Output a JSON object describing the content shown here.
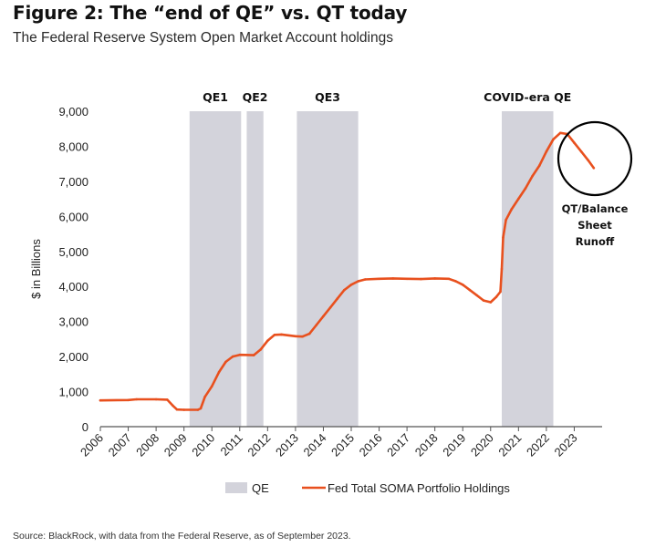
{
  "header": {
    "title": "Figure 2: The “end of QE” vs. QT today",
    "subtitle": "The Federal Reserve System Open Market Account holdings"
  },
  "source": "Source: BlackRock, with data from the Federal Reserve, as of September 2023.",
  "colors": {
    "line": "#e8501e",
    "band": "#d3d3db",
    "axis": "#555555",
    "text": "#222222"
  },
  "chart_data": {
    "type": "line",
    "ylabel": "$ in Billions",
    "xlabel": "",
    "ylim": [
      0,
      9000
    ],
    "xlim": [
      2006,
      2024
    ],
    "yticks": [
      0,
      1000,
      2000,
      3000,
      4000,
      5000,
      6000,
      7000,
      8000,
      9000
    ],
    "ytick_labels": [
      "0",
      "1,000",
      "2,000",
      "3,000",
      "4,000",
      "5,000",
      "6,000",
      "7,000",
      "8,000",
      "9,000"
    ],
    "xticks": [
      "2006",
      "2007",
      "2008",
      "2009",
      "2010",
      "2011",
      "2012",
      "2013",
      "2014",
      "2015",
      "2016",
      "2017",
      "2018",
      "2019",
      "2020",
      "2021",
      "2022",
      "2023"
    ],
    "bands": [
      {
        "label": "QE1",
        "start": 2009.2,
        "end": 2011.05
      },
      {
        "label": "QE2",
        "start": 2011.25,
        "end": 2011.85
      },
      {
        "label": "QE3",
        "start": 2013.05,
        "end": 2015.25
      },
      {
        "label": "COVID-era QE",
        "start": 2020.4,
        "end": 2022.25
      }
    ],
    "series": [
      {
        "name": "Fed Total SOMA Portfolio Holdings",
        "points": [
          [
            2006.0,
            750
          ],
          [
            2007.0,
            760
          ],
          [
            2007.3,
            780
          ],
          [
            2008.0,
            780
          ],
          [
            2008.4,
            770
          ],
          [
            2008.6,
            600
          ],
          [
            2008.75,
            490
          ],
          [
            2009.0,
            480
          ],
          [
            2009.5,
            480
          ],
          [
            2009.6,
            520
          ],
          [
            2009.75,
            850
          ],
          [
            2010.0,
            1150
          ],
          [
            2010.25,
            1550
          ],
          [
            2010.5,
            1850
          ],
          [
            2010.75,
            2000
          ],
          [
            2011.0,
            2050
          ],
          [
            2011.5,
            2040
          ],
          [
            2011.75,
            2200
          ],
          [
            2012.0,
            2450
          ],
          [
            2012.25,
            2620
          ],
          [
            2012.5,
            2630
          ],
          [
            2013.0,
            2580
          ],
          [
            2013.25,
            2570
          ],
          [
            2013.5,
            2650
          ],
          [
            2013.75,
            2900
          ],
          [
            2014.0,
            3150
          ],
          [
            2014.25,
            3400
          ],
          [
            2014.5,
            3650
          ],
          [
            2014.75,
            3900
          ],
          [
            2015.0,
            4050
          ],
          [
            2015.25,
            4150
          ],
          [
            2015.5,
            4200
          ],
          [
            2016.0,
            4220
          ],
          [
            2016.5,
            4230
          ],
          [
            2017.0,
            4220
          ],
          [
            2017.5,
            4210
          ],
          [
            2018.0,
            4230
          ],
          [
            2018.5,
            4220
          ],
          [
            2018.75,
            4150
          ],
          [
            2019.0,
            4050
          ],
          [
            2019.25,
            3900
          ],
          [
            2019.5,
            3750
          ],
          [
            2019.75,
            3600
          ],
          [
            2020.0,
            3550
          ],
          [
            2020.2,
            3700
          ],
          [
            2020.35,
            3850
          ],
          [
            2020.4,
            4500
          ],
          [
            2020.45,
            5400
          ],
          [
            2020.55,
            5900
          ],
          [
            2020.75,
            6200
          ],
          [
            2021.0,
            6500
          ],
          [
            2021.25,
            6800
          ],
          [
            2021.5,
            7150
          ],
          [
            2021.75,
            7450
          ],
          [
            2022.0,
            7850
          ],
          [
            2022.25,
            8200
          ],
          [
            2022.5,
            8380
          ],
          [
            2022.75,
            8350
          ],
          [
            2023.0,
            8100
          ],
          [
            2023.25,
            7850
          ],
          [
            2023.5,
            7600
          ],
          [
            2023.7,
            7380
          ]
        ]
      }
    ],
    "annotation": "QT/Balance Sheet Runoff",
    "annotation_lines": [
      "QT/Balance",
      "Sheet",
      "Runoff"
    ],
    "legend": {
      "position": "bottom",
      "entries": [
        "QE",
        "Fed Total SOMA Portfolio Holdings"
      ]
    }
  }
}
